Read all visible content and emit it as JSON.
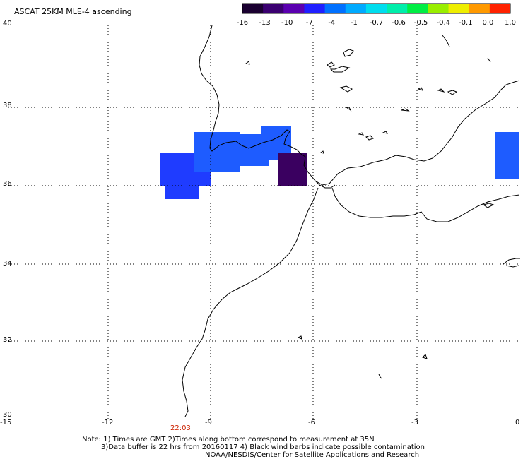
{
  "title": "ASCAT 25KM MLE-4 ascending",
  "colorbar": {
    "labels": [
      "-16",
      "-13",
      "-10",
      "-7",
      "-4",
      "-1",
      "-0.7",
      "-0.6",
      "-0.5",
      "-0.4",
      "-0.1",
      "0.0",
      "1.0"
    ],
    "colors": [
      "#1a0030",
      "#3a0070",
      "#5a00b0",
      "#1f1fff",
      "#0070ff",
      "#00aaff",
      "#00ddee",
      "#00eeaa",
      "#00ee44",
      "#99ee00",
      "#eeee00",
      "#ff9900",
      "#ff2200"
    ]
  },
  "axes": {
    "x_labels": [
      "-15",
      "-12",
      "-9",
      "-6",
      "-3",
      "0"
    ],
    "y_labels": [
      "40",
      "38",
      "36",
      "34",
      "32",
      "30"
    ]
  },
  "time_label": "22:03",
  "notes": {
    "line1": "Note: 1) Times are GMT 2)Times along bottom correspond to measurement at 35N",
    "line2": "3)Data buffer is 22 hrs from 20160117 4) Black wind barbs indicate possible contamination",
    "line3": "NOAA/NESDIS/Center for Satellite Applications and Research"
  },
  "colors": {
    "blue_main": "#1f3cff",
    "blue_light": "#1e5cff",
    "purple_dark": "#3a0060",
    "time_red": "#cc2200"
  }
}
